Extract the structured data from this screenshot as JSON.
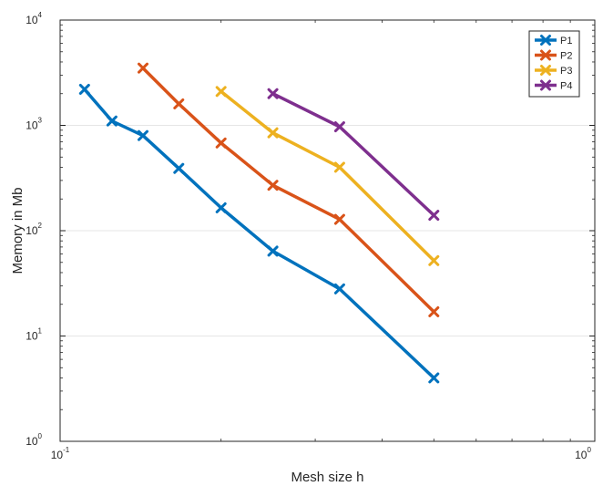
{
  "chart_data": {
    "type": "line",
    "xscale": "log",
    "yscale": "log",
    "xlim": [
      0.1,
      1
    ],
    "ylim": [
      1,
      10000
    ],
    "xlabel": "Mesh size h",
    "ylabel": "Memory in Mb",
    "grid": "horizontal-major",
    "legend_position": "top-right",
    "xticks": [
      {
        "value": 0.1,
        "base": "10",
        "exp": "-1"
      },
      {
        "value": 1,
        "base": "10",
        "exp": "0"
      }
    ],
    "yticks": [
      {
        "value": 1,
        "base": "10",
        "exp": "0"
      },
      {
        "value": 10,
        "base": "10",
        "exp": "1"
      },
      {
        "value": 100,
        "base": "10",
        "exp": "2"
      },
      {
        "value": 1000,
        "base": "10",
        "exp": "3"
      },
      {
        "value": 10000,
        "base": "10",
        "exp": "4"
      }
    ],
    "series": [
      {
        "name": "P1",
        "color": "#0072BD",
        "x": [
          0.1111,
          0.125,
          0.1429,
          0.1667,
          0.2,
          0.25,
          0.3333,
          0.5
        ],
        "y": [
          2200,
          1100,
          800,
          390,
          165,
          64,
          28,
          4
        ]
      },
      {
        "name": "P2",
        "color": "#D95319",
        "x": [
          0.1429,
          0.1667,
          0.2,
          0.25,
          0.3333,
          0.5
        ],
        "y": [
          3500,
          1600,
          680,
          270,
          128,
          17
        ]
      },
      {
        "name": "P3",
        "color": "#EDB120",
        "x": [
          0.2,
          0.25,
          0.3333,
          0.5
        ],
        "y": [
          2100,
          850,
          400,
          52
        ]
      },
      {
        "name": "P4",
        "color": "#7E2F8E",
        "x": [
          0.25,
          0.3333,
          0.5
        ],
        "y": [
          2000,
          970,
          140
        ]
      }
    ]
  }
}
